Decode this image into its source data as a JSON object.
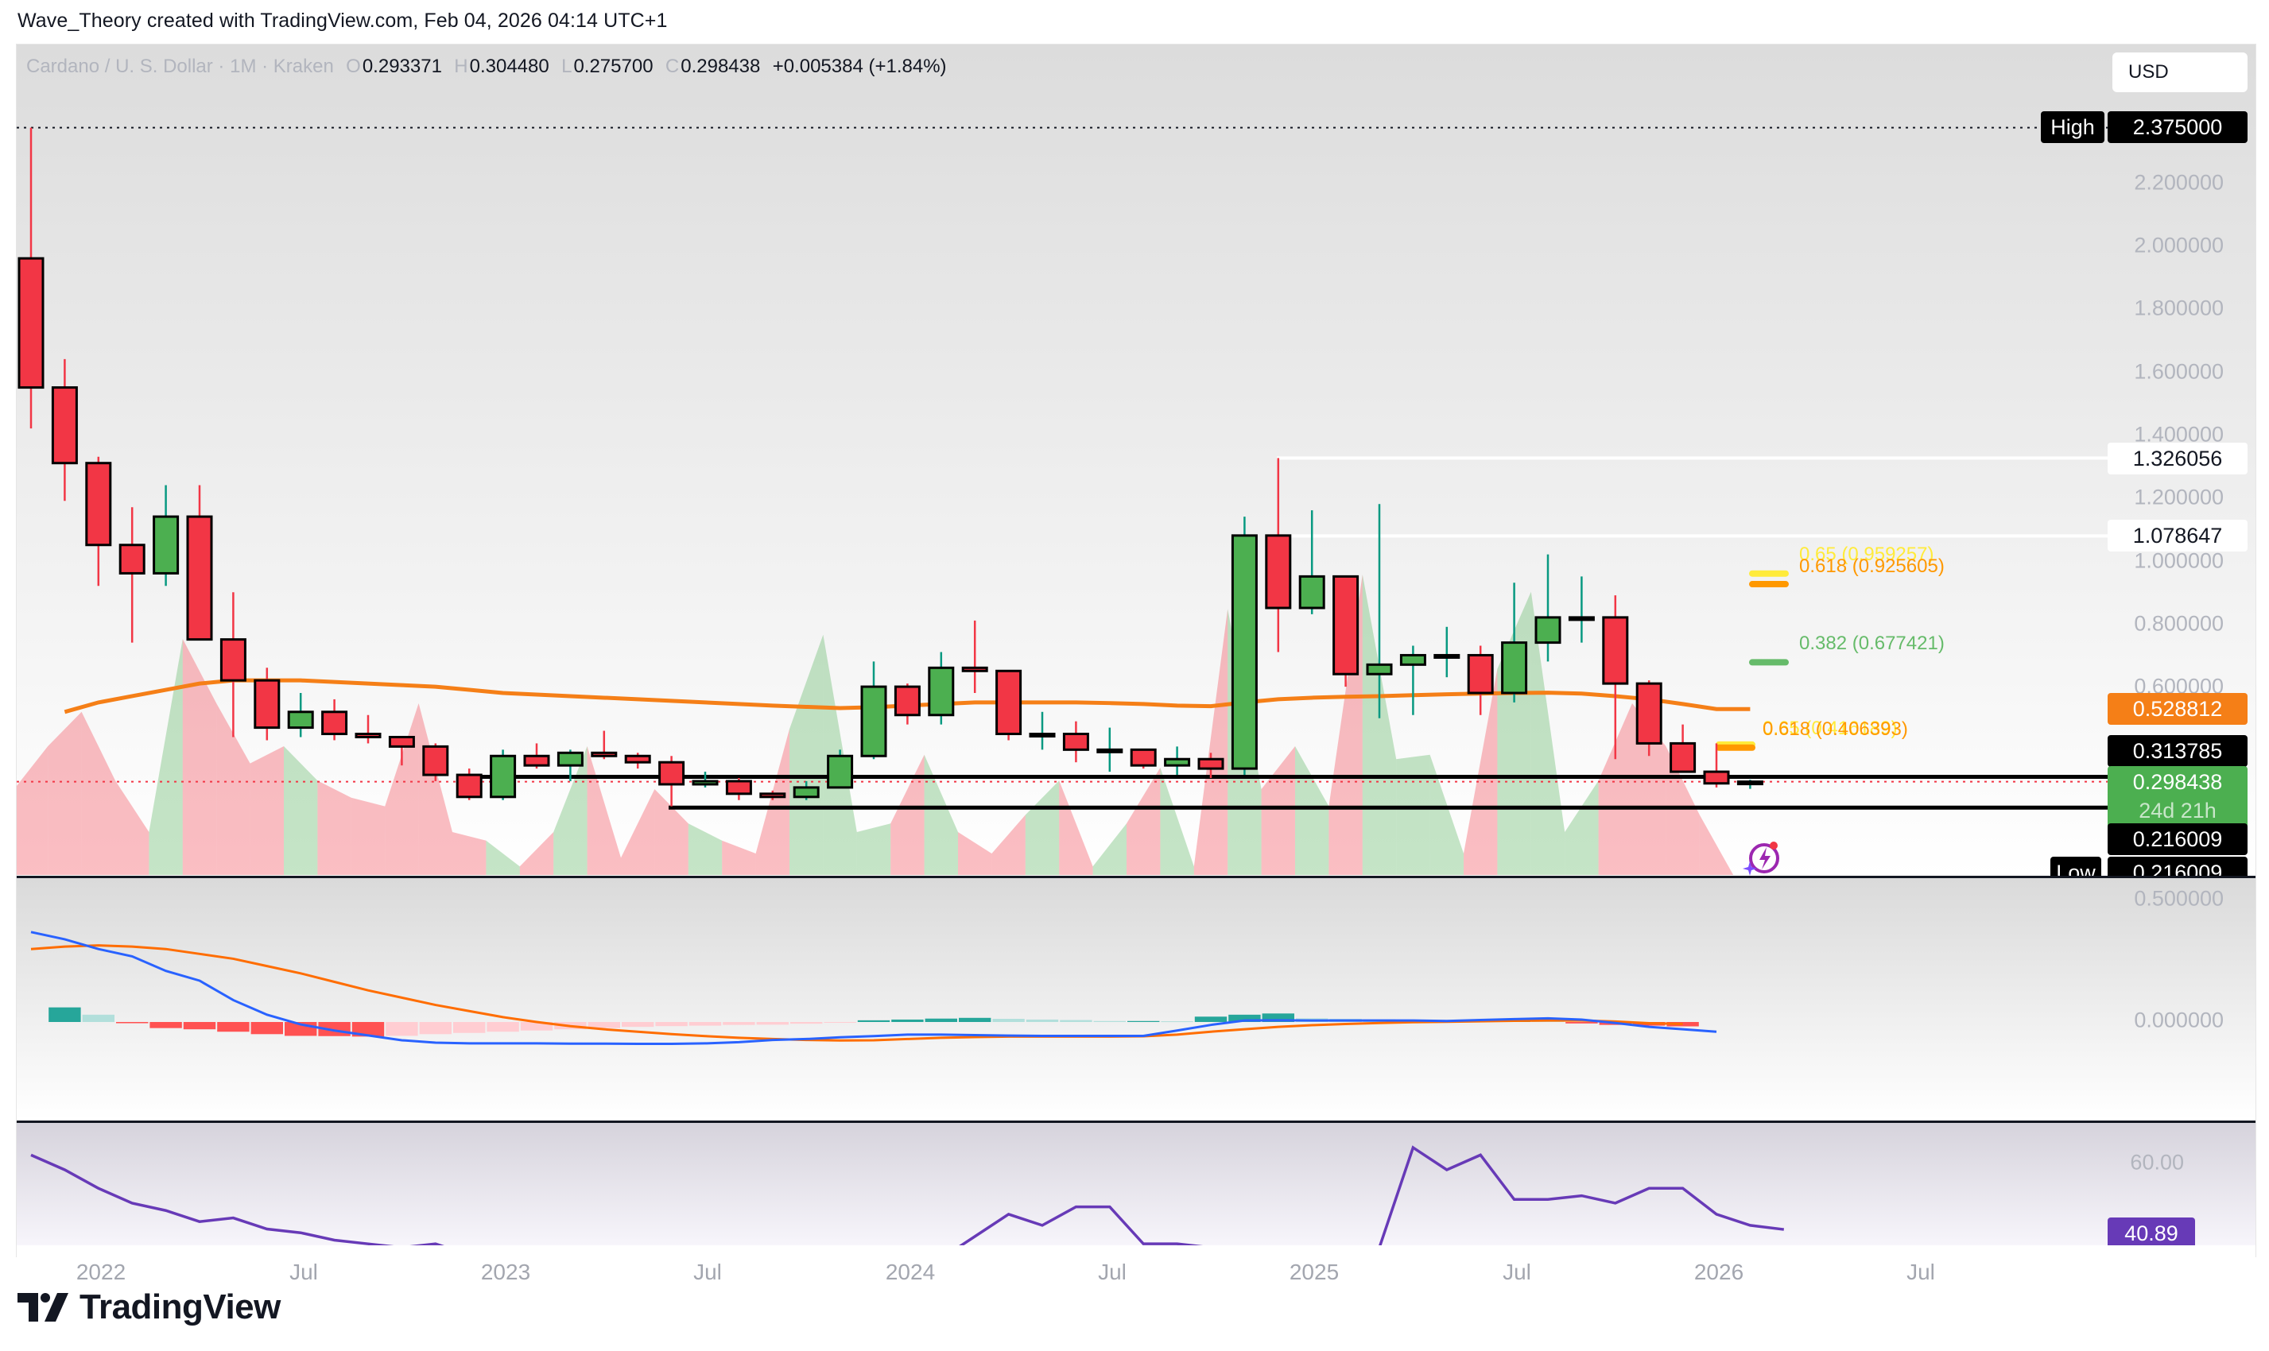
{
  "caption": "Wave_Theory created with TradingView.com, Feb 04, 2026 04:14 UTC+1",
  "legend": {
    "symbol": "Cardano / U. S. Dollar · 1M · Kraken",
    "o_label": "O",
    "o": "0.293371",
    "h_label": "H",
    "h": "0.304480",
    "l_label": "L",
    "l": "0.275700",
    "c_label": "C",
    "c": "0.298438",
    "change": "+0.005384 (+1.84%)"
  },
  "currency_button": "USD",
  "price_axis": {
    "ticks": [
      "2.200000",
      "2.000000",
      "1.800000",
      "1.600000",
      "1.400000",
      "1.200000",
      "1.000000",
      "0.800000",
      "0.600000"
    ],
    "high_label": "High",
    "high_value": "2.375000",
    "low_label": "Low",
    "low_value": "0.216009",
    "level_1": "1.326056",
    "level_2": "1.078647",
    "ema_value": "0.528812",
    "support_upper": "0.313785",
    "last_price": "0.298438",
    "countdown": "24d 21h",
    "support_lower": "0.216009"
  },
  "fib_labels": {
    "upper_065": "0.65 (0.959257)",
    "upper_0618": "0.618 (0.925605)",
    "upper_0382": "0.382 (0.677421)",
    "lower_065": "0.65 (0.416189)",
    "lower_0618": "0.618 (0.406393)"
  },
  "macd_axis": {
    "ticks": [
      "0.500000",
      "0.000000"
    ]
  },
  "rsi_axis": {
    "tick": "60.00",
    "value": "40.89"
  },
  "time_axis": [
    "2022",
    "Jul",
    "2023",
    "Jul",
    "2024",
    "Jul",
    "2025",
    "Jul",
    "2026",
    "Jul"
  ],
  "logo": "TradingView",
  "colors": {
    "bull": "#4CAF50",
    "bear": "#F23645",
    "bull_wick": "#089981",
    "ema": "#F57F17",
    "macd": "#2962FF",
    "signal": "#FF6D00",
    "rsi": "#673AB7",
    "fib_065": "#FFEB3B",
    "fib_0618": "#FF9800",
    "fib_0382": "#66BB6A"
  },
  "chart_data": {
    "type": "candlestick",
    "title": "Cardano / U. S. Dollar · 1M · Kraken",
    "xlabel": "",
    "ylabel": "USD",
    "ylim": [
      0.216009,
      2.375
    ],
    "categories": [
      "2021-11",
      "2021-12",
      "2022-01",
      "2022-02",
      "2022-03",
      "2022-04",
      "2022-05",
      "2022-06",
      "2022-07",
      "2022-08",
      "2022-09",
      "2022-10",
      "2022-11",
      "2022-12",
      "2023-01",
      "2023-02",
      "2023-03",
      "2023-04",
      "2023-05",
      "2023-06",
      "2023-07",
      "2023-08",
      "2023-09",
      "2023-10",
      "2023-11",
      "2023-12",
      "2024-01",
      "2024-02",
      "2024-03",
      "2024-04",
      "2024-05",
      "2024-06",
      "2024-07",
      "2024-08",
      "2024-09",
      "2024-10",
      "2024-11",
      "2024-12",
      "2025-01",
      "2025-02",
      "2025-03",
      "2025-04",
      "2025-05",
      "2025-06",
      "2025-07",
      "2025-08",
      "2025-09",
      "2025-10",
      "2025-11",
      "2025-12",
      "2026-01",
      "2026-02"
    ],
    "ohlc": [
      [
        1.96,
        2.375,
        1.42,
        1.55
      ],
      [
        1.55,
        1.64,
        1.19,
        1.31
      ],
      [
        1.31,
        1.33,
        0.92,
        1.05
      ],
      [
        1.05,
        1.17,
        0.74,
        0.96
      ],
      [
        0.96,
        1.24,
        0.92,
        1.14
      ],
      [
        1.14,
        1.24,
        0.75,
        0.75
      ],
      [
        0.75,
        0.9,
        0.44,
        0.62
      ],
      [
        0.62,
        0.66,
        0.43,
        0.47
      ],
      [
        0.47,
        0.58,
        0.44,
        0.52
      ],
      [
        0.52,
        0.56,
        0.43,
        0.45
      ],
      [
        0.45,
        0.51,
        0.42,
        0.44
      ],
      [
        0.44,
        0.44,
        0.35,
        0.41
      ],
      [
        0.41,
        0.42,
        0.3,
        0.32
      ],
      [
        0.32,
        0.34,
        0.24,
        0.25
      ],
      [
        0.25,
        0.4,
        0.24,
        0.38
      ],
      [
        0.38,
        0.42,
        0.34,
        0.35
      ],
      [
        0.35,
        0.4,
        0.3,
        0.39
      ],
      [
        0.39,
        0.46,
        0.37,
        0.38
      ],
      [
        0.38,
        0.39,
        0.34,
        0.36
      ],
      [
        0.36,
        0.38,
        0.22,
        0.29
      ],
      [
        0.29,
        0.33,
        0.28,
        0.3
      ],
      [
        0.3,
        0.31,
        0.24,
        0.26
      ],
      [
        0.26,
        0.27,
        0.24,
        0.25
      ],
      [
        0.25,
        0.3,
        0.24,
        0.28
      ],
      [
        0.28,
        0.4,
        0.28,
        0.38
      ],
      [
        0.38,
        0.68,
        0.37,
        0.6
      ],
      [
        0.6,
        0.61,
        0.48,
        0.51
      ],
      [
        0.51,
        0.71,
        0.48,
        0.66
      ],
      [
        0.66,
        0.81,
        0.58,
        0.65
      ],
      [
        0.65,
        0.65,
        0.43,
        0.45
      ],
      [
        0.45,
        0.52,
        0.4,
        0.45
      ],
      [
        0.45,
        0.49,
        0.36,
        0.4
      ],
      [
        0.4,
        0.47,
        0.33,
        0.4
      ],
      [
        0.4,
        0.4,
        0.34,
        0.35
      ],
      [
        0.35,
        0.41,
        0.32,
        0.37
      ],
      [
        0.37,
        0.39,
        0.31,
        0.34
      ],
      [
        0.34,
        1.14,
        0.32,
        1.08
      ],
      [
        1.08,
        1.326,
        0.71,
        0.85
      ],
      [
        0.85,
        1.16,
        0.83,
        0.95
      ],
      [
        0.95,
        0.95,
        0.6,
        0.64
      ],
      [
        0.64,
        1.18,
        0.5,
        0.67
      ],
      [
        0.67,
        0.73,
        0.51,
        0.7
      ],
      [
        0.7,
        0.79,
        0.63,
        0.7
      ],
      [
        0.7,
        0.73,
        0.51,
        0.58
      ],
      [
        0.58,
        0.93,
        0.55,
        0.74
      ],
      [
        0.74,
        1.02,
        0.68,
        0.82
      ],
      [
        0.82,
        0.95,
        0.74,
        0.82
      ],
      [
        0.82,
        0.89,
        0.37,
        0.61
      ],
      [
        0.61,
        0.62,
        0.38,
        0.42
      ],
      [
        0.42,
        0.48,
        0.33,
        0.33
      ],
      [
        0.33,
        0.42,
        0.28,
        0.293
      ],
      [
        0.293371,
        0.30448,
        0.2757,
        0.298438
      ]
    ],
    "overlays": {
      "ema_last": 0.528812,
      "horizontal_levels": [
        1.326056,
        1.078647,
        0.313785,
        0.216009
      ],
      "fib_upper": {
        "0.382": 0.677421,
        "0.618": 0.925605,
        "0.65": 0.959257
      },
      "fib_lower": {
        "0.618": 0.406393,
        "0.65": 0.416189
      }
    },
    "indicators": {
      "macd": {
        "ylim": [
          -0.2,
          0.55
        ],
        "ticks": [
          0.5,
          0.0
        ]
      },
      "rsi": {
        "last": 40.89,
        "ticks": [
          60.0
        ]
      }
    },
    "x_ticks": [
      "2022",
      "Jul",
      "2023",
      "Jul",
      "2024",
      "Jul",
      "2025",
      "Jul",
      "2026",
      "Jul"
    ]
  }
}
